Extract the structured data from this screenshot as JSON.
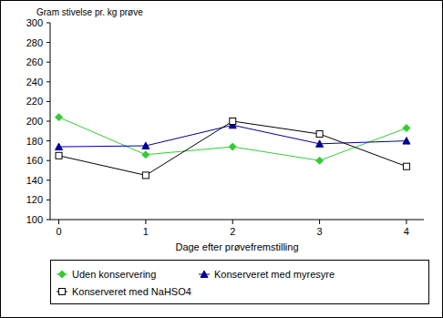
{
  "chart_data": {
    "type": "line",
    "y_label": "Gram stivelse pr. kg prøve",
    "x_label": "Dage efter prøvefremstilling",
    "x": [
      0,
      1,
      2,
      3,
      4
    ],
    "xlim": [
      -0.1,
      4.2
    ],
    "xticks": [
      0,
      1,
      2,
      3,
      4
    ],
    "ylim": [
      100,
      300
    ],
    "yticks": [
      100,
      120,
      140,
      160,
      180,
      200,
      220,
      240,
      260,
      280,
      300
    ],
    "grid": false,
    "legend": "bottom",
    "series": [
      {
        "name": "Uden konservering",
        "color": "#33cc33",
        "marker": "diamond",
        "values": [
          204,
          166,
          174,
          160,
          193
        ]
      },
      {
        "name": "Konserveret med myresyre",
        "color": "#000099",
        "marker": "triangle",
        "values": [
          174,
          175,
          196,
          177,
          180
        ]
      },
      {
        "name": "Konserveret med NaHSO4",
        "color": "#000000",
        "marker": "square-open",
        "values": [
          165,
          145,
          200,
          187,
          154
        ]
      }
    ]
  }
}
